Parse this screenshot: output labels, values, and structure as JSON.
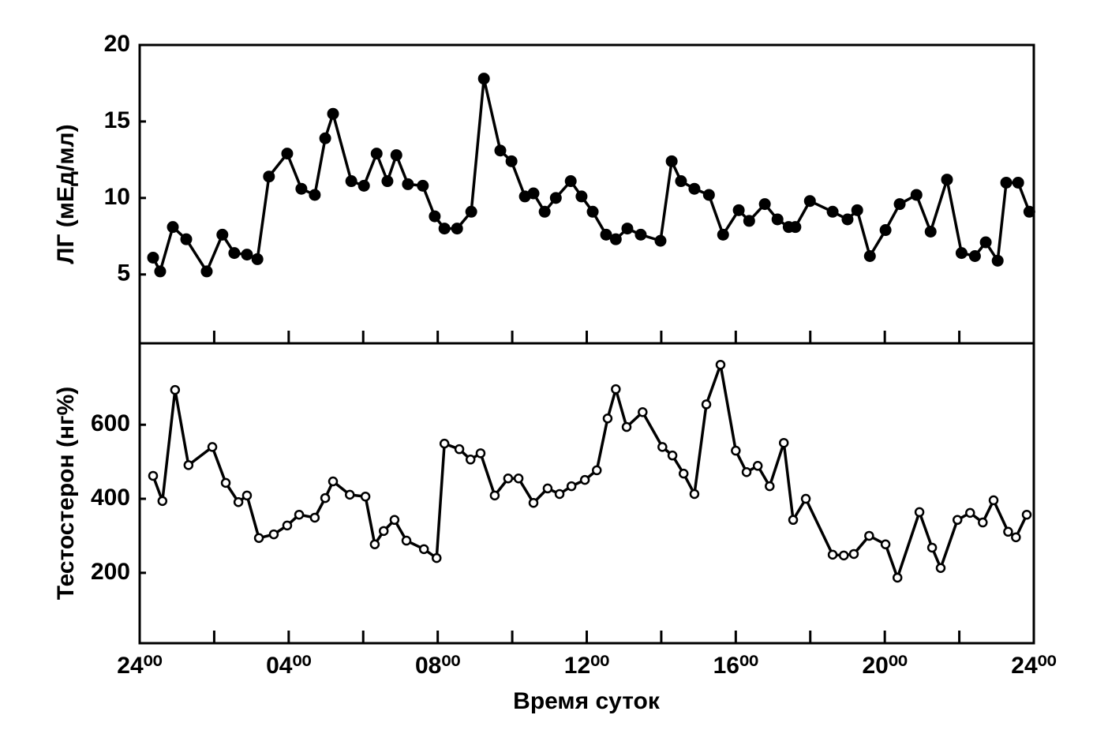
{
  "chart_data": [
    {
      "type": "line",
      "ylabel": "ЛГ (мЕд/мл)",
      "color": "#000000",
      "marker": "filled",
      "xlim": [
        0,
        24
      ],
      "ylim": [
        0.5,
        20
      ],
      "yticks": [
        5,
        10,
        15,
        20
      ],
      "xminorticks": [
        2,
        4,
        6,
        8,
        10,
        12,
        14,
        16,
        18,
        20,
        22
      ],
      "x": [
        0.36,
        0.55,
        0.89,
        1.25,
        1.8,
        2.22,
        2.54,
        2.88,
        3.16,
        3.47,
        3.96,
        4.34,
        4.7,
        4.98,
        5.19,
        5.68,
        6.02,
        6.36,
        6.65,
        6.89,
        7.2,
        7.6,
        7.92,
        8.18,
        8.52,
        8.9,
        9.24,
        9.68,
        9.98,
        10.34,
        10.57,
        10.87,
        11.17,
        11.57,
        11.86,
        12.16,
        12.52,
        12.78,
        13.09,
        13.45,
        13.98,
        14.28,
        14.53,
        14.89,
        15.28,
        15.66,
        16.08,
        16.36,
        16.78,
        17.12,
        17.42,
        17.6,
        17.99,
        18.6,
        19.0,
        19.26,
        19.6,
        20.02,
        20.4,
        20.85,
        21.23,
        21.67,
        22.06,
        22.42,
        22.71,
        23.03,
        23.26,
        23.58,
        23.88
      ],
      "values": [
        6.1,
        5.2,
        8.1,
        7.3,
        5.2,
        7.6,
        6.4,
        6.3,
        6.0,
        11.4,
        12.9,
        10.6,
        10.2,
        13.9,
        15.5,
        11.1,
        10.8,
        12.9,
        11.1,
        12.8,
        10.9,
        10.8,
        8.8,
        8.0,
        8.0,
        9.1,
        17.8,
        13.1,
        12.4,
        10.1,
        10.3,
        9.1,
        10.0,
        11.1,
        10.1,
        9.1,
        7.6,
        7.3,
        8.0,
        7.6,
        7.2,
        12.4,
        11.1,
        10.6,
        10.2,
        7.6,
        9.2,
        8.5,
        9.6,
        8.6,
        8.1,
        8.1,
        9.8,
        9.1,
        8.6,
        9.2,
        6.2,
        7.9,
        9.6,
        10.2,
        7.8,
        11.2,
        6.4,
        6.2,
        7.1,
        5.9,
        11.0,
        11.0,
        9.1
      ]
    },
    {
      "type": "line",
      "ylabel": "Тестостерон (нг%)",
      "xlabel": "Время суток",
      "color": "#000000",
      "marker": "open",
      "xlim": [
        0,
        24
      ],
      "ylim": [
        10,
        820
      ],
      "yticks": [
        200,
        400,
        600
      ],
      "xticks": [
        {
          "value": 0,
          "label": "24⁰⁰"
        },
        {
          "value": 4,
          "label": "04⁰⁰"
        },
        {
          "value": 8,
          "label": "08⁰⁰"
        },
        {
          "value": 12,
          "label": "12⁰⁰"
        },
        {
          "value": 16,
          "label": "16⁰⁰"
        },
        {
          "value": 20,
          "label": "20⁰⁰"
        },
        {
          "value": 24,
          "label": "24⁰⁰"
        }
      ],
      "xminorticks": [
        2,
        6,
        10,
        14,
        18,
        22
      ],
      "x": [
        0.36,
        0.61,
        0.95,
        1.31,
        1.95,
        2.31,
        2.65,
        2.88,
        3.2,
        3.6,
        3.96,
        4.28,
        4.7,
        4.98,
        5.19,
        5.64,
        6.06,
        6.31,
        6.55,
        6.84,
        7.16,
        7.63,
        7.97,
        8.18,
        8.58,
        8.88,
        9.15,
        9.53,
        9.89,
        10.17,
        10.57,
        10.95,
        11.27,
        11.59,
        11.95,
        12.27,
        12.56,
        12.78,
        13.07,
        13.5,
        14.03,
        14.3,
        14.6,
        14.89,
        15.21,
        15.59,
        16.0,
        16.29,
        16.59,
        16.91,
        17.29,
        17.54,
        17.88,
        18.6,
        18.9,
        19.17,
        19.58,
        20.02,
        20.34,
        20.93,
        21.27,
        21.5,
        21.95,
        22.29,
        22.63,
        22.92,
        23.31,
        23.52,
        23.81
      ],
      "values": [
        462,
        394,
        694,
        491,
        540,
        443,
        391,
        409,
        294,
        304,
        328,
        357,
        349,
        402,
        447,
        411,
        406,
        277,
        313,
        343,
        287,
        264,
        240,
        549,
        534,
        506,
        523,
        409,
        455,
        455,
        389,
        428,
        413,
        434,
        451,
        477,
        617,
        696,
        594,
        634,
        540,
        517,
        468,
        413,
        655,
        762,
        530,
        472,
        489,
        434,
        551,
        343,
        400,
        249,
        247,
        251,
        300,
        277,
        187,
        364,
        268,
        213,
        343,
        362,
        336,
        396,
        311,
        296,
        357
      ]
    }
  ]
}
